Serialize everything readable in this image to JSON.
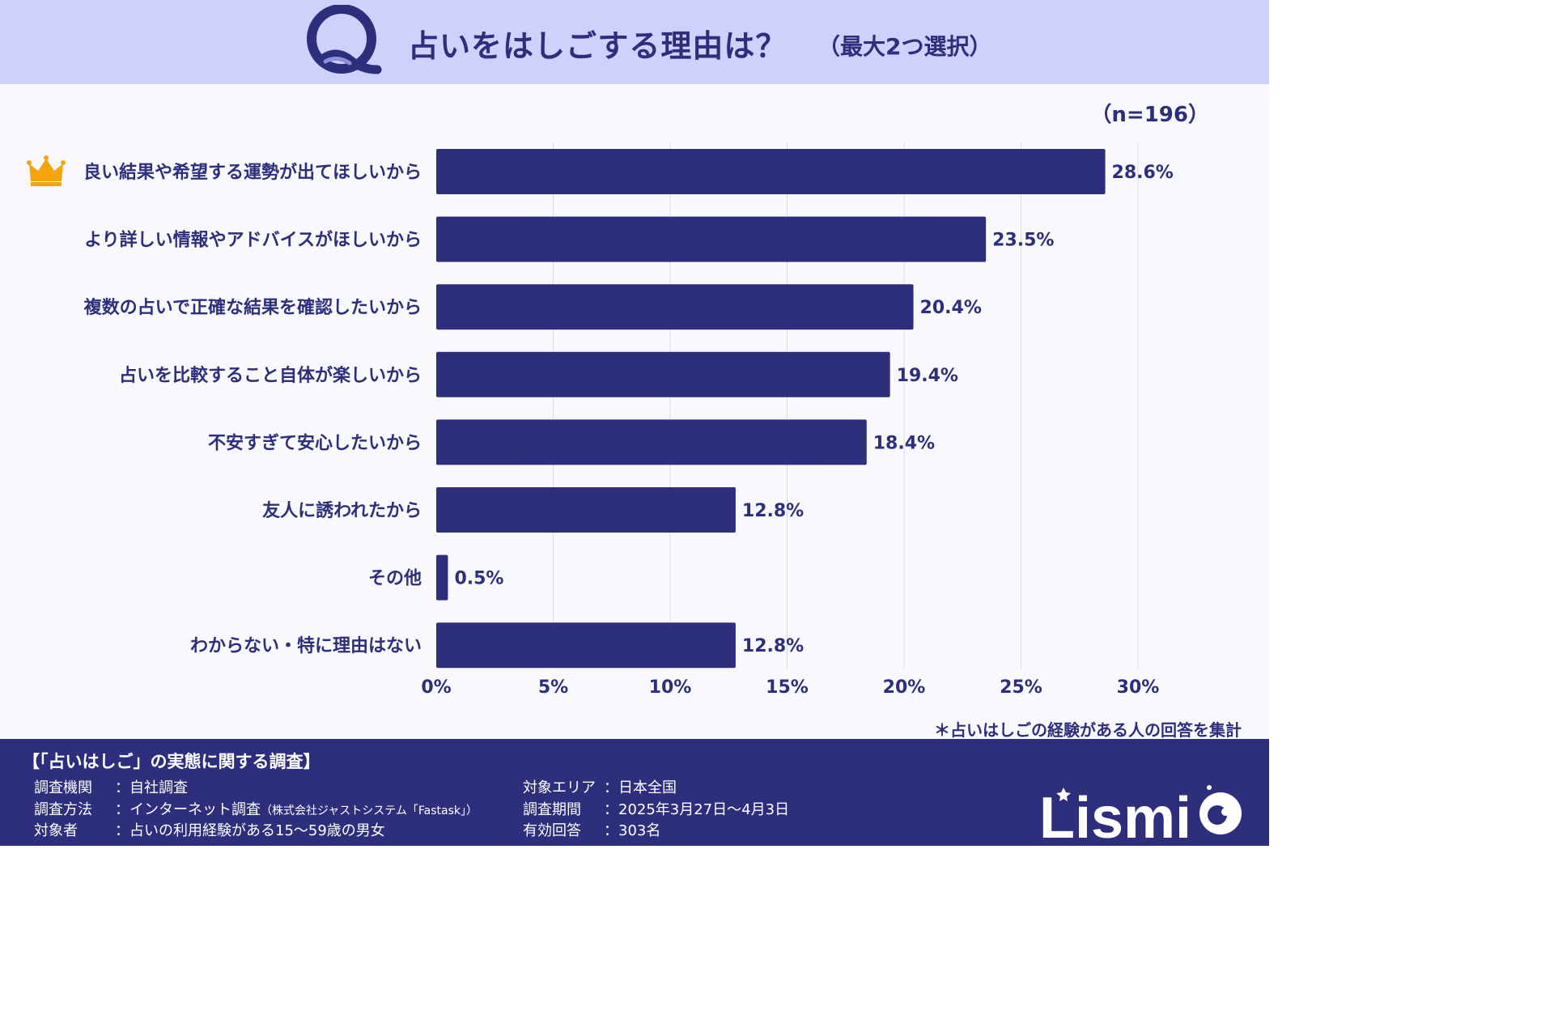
{
  "header": {
    "q_letter": "Q",
    "title": "占いをはしごする理由は？",
    "subtitle": "（最大2つ選択）"
  },
  "sample_size": "（n=196）",
  "note": "＊占いはしごの経験がある人の回答を集計",
  "colors": {
    "bar": "#2d2f7d",
    "header_bg": "#cfd0fb",
    "footer_bg": "#2d2f7d",
    "crown": "#f5a50b"
  },
  "chart_data": {
    "type": "bar",
    "orientation": "horizontal",
    "categories": [
      "良い結果や希望する運勢が出てほしいから",
      "より詳しい情報やアドバイスがほしいから",
      "複数の占いで正確な結果を確認したいから",
      "占いを比較すること自体が楽しいから",
      "不安すぎて安心したいから",
      "友人に誘われたから",
      "その他",
      "わからない・特に理由はない"
    ],
    "values": [
      28.6,
      23.5,
      20.4,
      19.4,
      18.4,
      12.8,
      0.5,
      12.8
    ],
    "value_labels": [
      "28.6%",
      "23.5%",
      "20.4%",
      "19.4%",
      "18.4%",
      "12.8%",
      "0.5%",
      "12.8%"
    ],
    "xlim": [
      0,
      30
    ],
    "xticks": [
      0,
      5,
      10,
      15,
      20,
      25,
      30
    ],
    "xtick_labels": [
      "0%",
      "5%",
      "10%",
      "15%",
      "20%",
      "25%",
      "30%"
    ],
    "grid": true,
    "top_item_icon": "crown-icon"
  },
  "footer": {
    "survey_title": "【「占いはしご」の実態に関する調査】",
    "left": [
      {
        "label": "調査機関",
        "value": "：自社調査",
        "note": ""
      },
      {
        "label": "調査方法",
        "value": "：インターネット調査",
        "note": "（株式会社ジャストシステム「Fastask」）"
      },
      {
        "label": "対象者",
        "value": "：占いの利用経験がある15～59歳の男女",
        "note": ""
      }
    ],
    "right": [
      {
        "label": "対象エリア",
        "value": "：日本全国"
      },
      {
        "label": "調査期間",
        "value": "：2025年3月27日～4月3日"
      },
      {
        "label": "有効回答",
        "value": "：303名"
      }
    ],
    "logo_text": "Lismi"
  }
}
